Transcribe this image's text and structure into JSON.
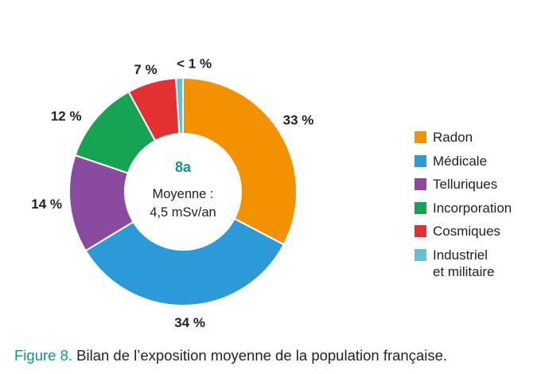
{
  "chart_data": {
    "type": "pie",
    "center_label": "8a",
    "center_text_line1": "Moyenne :",
    "center_text_line2": "4,5 mSv/an",
    "slices": [
      {
        "name": "Radon",
        "value": 33,
        "label": "33 %",
        "color": "#F39200"
      },
      {
        "name": "Médicale",
        "value": 34,
        "label": "34 %",
        "color": "#2D9AD8"
      },
      {
        "name": "Telluriques",
        "value": 14,
        "label": "14 %",
        "color": "#8A4A9E"
      },
      {
        "name": "Incorporation",
        "value": 12,
        "label": "12 %",
        "color": "#18A354"
      },
      {
        "name": "Cosmiques",
        "value": 7,
        "label": "7 %",
        "color": "#E42F33"
      },
      {
        "name": "Industriel\net militaire",
        "value": 1,
        "label": "< 1 %",
        "color": "#66BFCB"
      }
    ],
    "accent_color": "#10958C"
  },
  "caption": {
    "prefix": "Figure 8.",
    "text": " Bilan de l’exposition moyenne de la population française."
  }
}
